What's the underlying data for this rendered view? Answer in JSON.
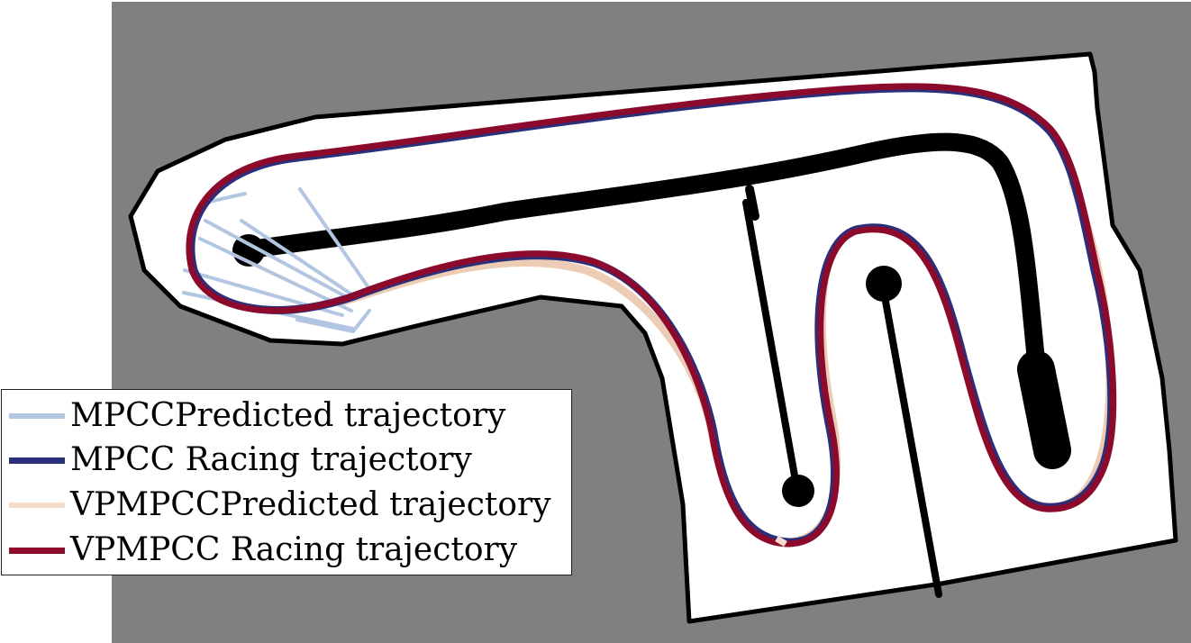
{
  "legend": {
    "items": [
      {
        "label": "MPCCPredicted trajectory",
        "color": "#b2c6e2"
      },
      {
        "label": "MPCC Racing trajectory",
        "color": "#2b2f7a"
      },
      {
        "label": "VPMPCCPredicted trajectory",
        "color": "#f6dccb"
      },
      {
        "label": "VPMPCC Racing trajectory",
        "color": "#8c0a2c"
      }
    ]
  },
  "colors": {
    "background": "#808080",
    "track": "#ffffff",
    "walls": "#000000"
  }
}
